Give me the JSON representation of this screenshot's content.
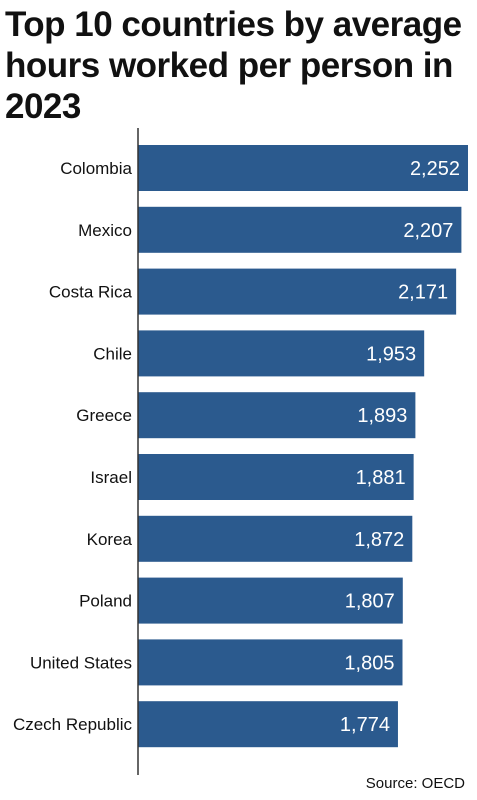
{
  "title": "Top 10 countries by average hours worked per person in 2023",
  "source": "Source: OECD",
  "colors": {
    "bar": "#2b5a8e",
    "label": "#111111",
    "value": "#ffffff",
    "axis": "#333333"
  },
  "chart_data": {
    "type": "bar",
    "orientation": "horizontal",
    "title": "Top 10 countries by average hours worked per person in 2023",
    "categories": [
      "Colombia",
      "Mexico",
      "Costa Rica",
      "Chile",
      "Greece",
      "Israel",
      "Korea",
      "Poland",
      "United States",
      "Czech Republic"
    ],
    "values": [
      2252,
      2207,
      2171,
      1953,
      1893,
      1881,
      1872,
      1807,
      1805,
      1774
    ],
    "value_labels": [
      "2,252",
      "2,207",
      "2,171",
      "1,953",
      "1,893",
      "1,881",
      "1,872",
      "1,807",
      "1,805",
      "1,774"
    ],
    "grid": false,
    "legend": "none"
  }
}
